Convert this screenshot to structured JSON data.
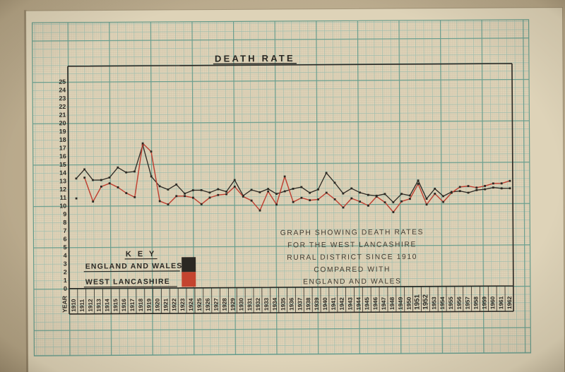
{
  "palette": {
    "photo_background_center": "#cabb9e",
    "photo_background_edge": "#b1a183",
    "paper": "#ded3b8",
    "grid_fine": "#ccbfa6",
    "grid_medium": "#93b7a9",
    "grid_heavy": "#5f9888",
    "ink": "#2b2823",
    "red": "#bf4032",
    "pencil_text": "#423c32"
  },
  "chart_data": {
    "type": "line",
    "title": "DEATH RATE",
    "x_axis_label": "YEAR",
    "ylim": [
      0,
      25
    ],
    "y_tick_step": 1,
    "grid": "graph-paper",
    "legend_position": "bottom-left-inside",
    "years": [
      1910,
      1911,
      1912,
      1913,
      1914,
      1915,
      1916,
      1917,
      1918,
      1919,
      1920,
      1921,
      1922,
      1923,
      1924,
      1925,
      1926,
      1927,
      1928,
      1929,
      1930,
      1931,
      1932,
      1933,
      1934,
      1935,
      1936,
      1937,
      1938,
      1939,
      1940,
      1941,
      1942,
      1943,
      1944,
      1945,
      1946,
      1947,
      1948,
      1949,
      1950,
      1951,
      1952,
      1953,
      1954,
      1955,
      1956,
      1957,
      1958,
      1959,
      1960,
      1961,
      1962
    ],
    "emphasized_year_labels": [
      1951,
      1952
    ],
    "series": [
      {
        "name": "ENGLAND AND WALES",
        "color": "#2b2823",
        "first_point_isolated": false,
        "values": [
          13.3,
          14.4,
          13.1,
          13.1,
          13.4,
          14.6,
          14.0,
          14.1,
          17.3,
          13.5,
          12.3,
          11.9,
          12.5,
          11.4,
          11.8,
          11.8,
          11.5,
          11.9,
          11.6,
          13.0,
          11.1,
          11.8,
          11.5,
          11.9,
          11.3,
          11.6,
          11.9,
          12.1,
          11.4,
          11.8,
          13.8,
          12.6,
          11.3,
          11.9,
          11.4,
          11.1,
          11.0,
          11.2,
          10.2,
          11.2,
          11.0,
          12.8,
          10.6,
          11.8,
          10.9,
          11.4,
          11.5,
          11.3,
          11.6,
          11.7,
          11.9,
          11.8,
          11.8
        ]
      },
      {
        "name": "WEST LANCASHIRE",
        "color": "#bf4032",
        "first_point_isolated": true,
        "values": [
          10.9,
          13.4,
          10.5,
          12.3,
          12.7,
          12.2,
          11.5,
          11.0,
          17.5,
          16.5,
          10.5,
          10.1,
          11.1,
          11.1,
          10.9,
          10.1,
          10.9,
          11.2,
          11.3,
          12.2,
          11.0,
          10.5,
          9.3,
          11.6,
          10.0,
          13.4,
          10.3,
          10.8,
          10.5,
          10.6,
          11.4,
          10.6,
          9.6,
          10.7,
          10.3,
          9.8,
          10.9,
          10.2,
          9.0,
          10.3,
          10.6,
          12.4,
          9.9,
          11.2,
          10.2,
          11.3,
          12.0,
          12.1,
          11.9,
          12.1,
          12.4,
          12.4,
          12.7
        ]
      }
    ],
    "key": {
      "title": "K E Y",
      "entries": [
        "ENGLAND AND WALES",
        "WEST LANCASHIRE"
      ],
      "swatch_colors": [
        "#2b2823",
        "#c4442f"
      ]
    },
    "annotation_lines": [
      "GRAPH SHOWING DEATH RATES",
      "FOR THE WEST LANCASHIRE",
      "RURAL DISTRICT SINCE 1910",
      "COMPARED WITH",
      "ENGLAND  AND  WALES"
    ]
  }
}
